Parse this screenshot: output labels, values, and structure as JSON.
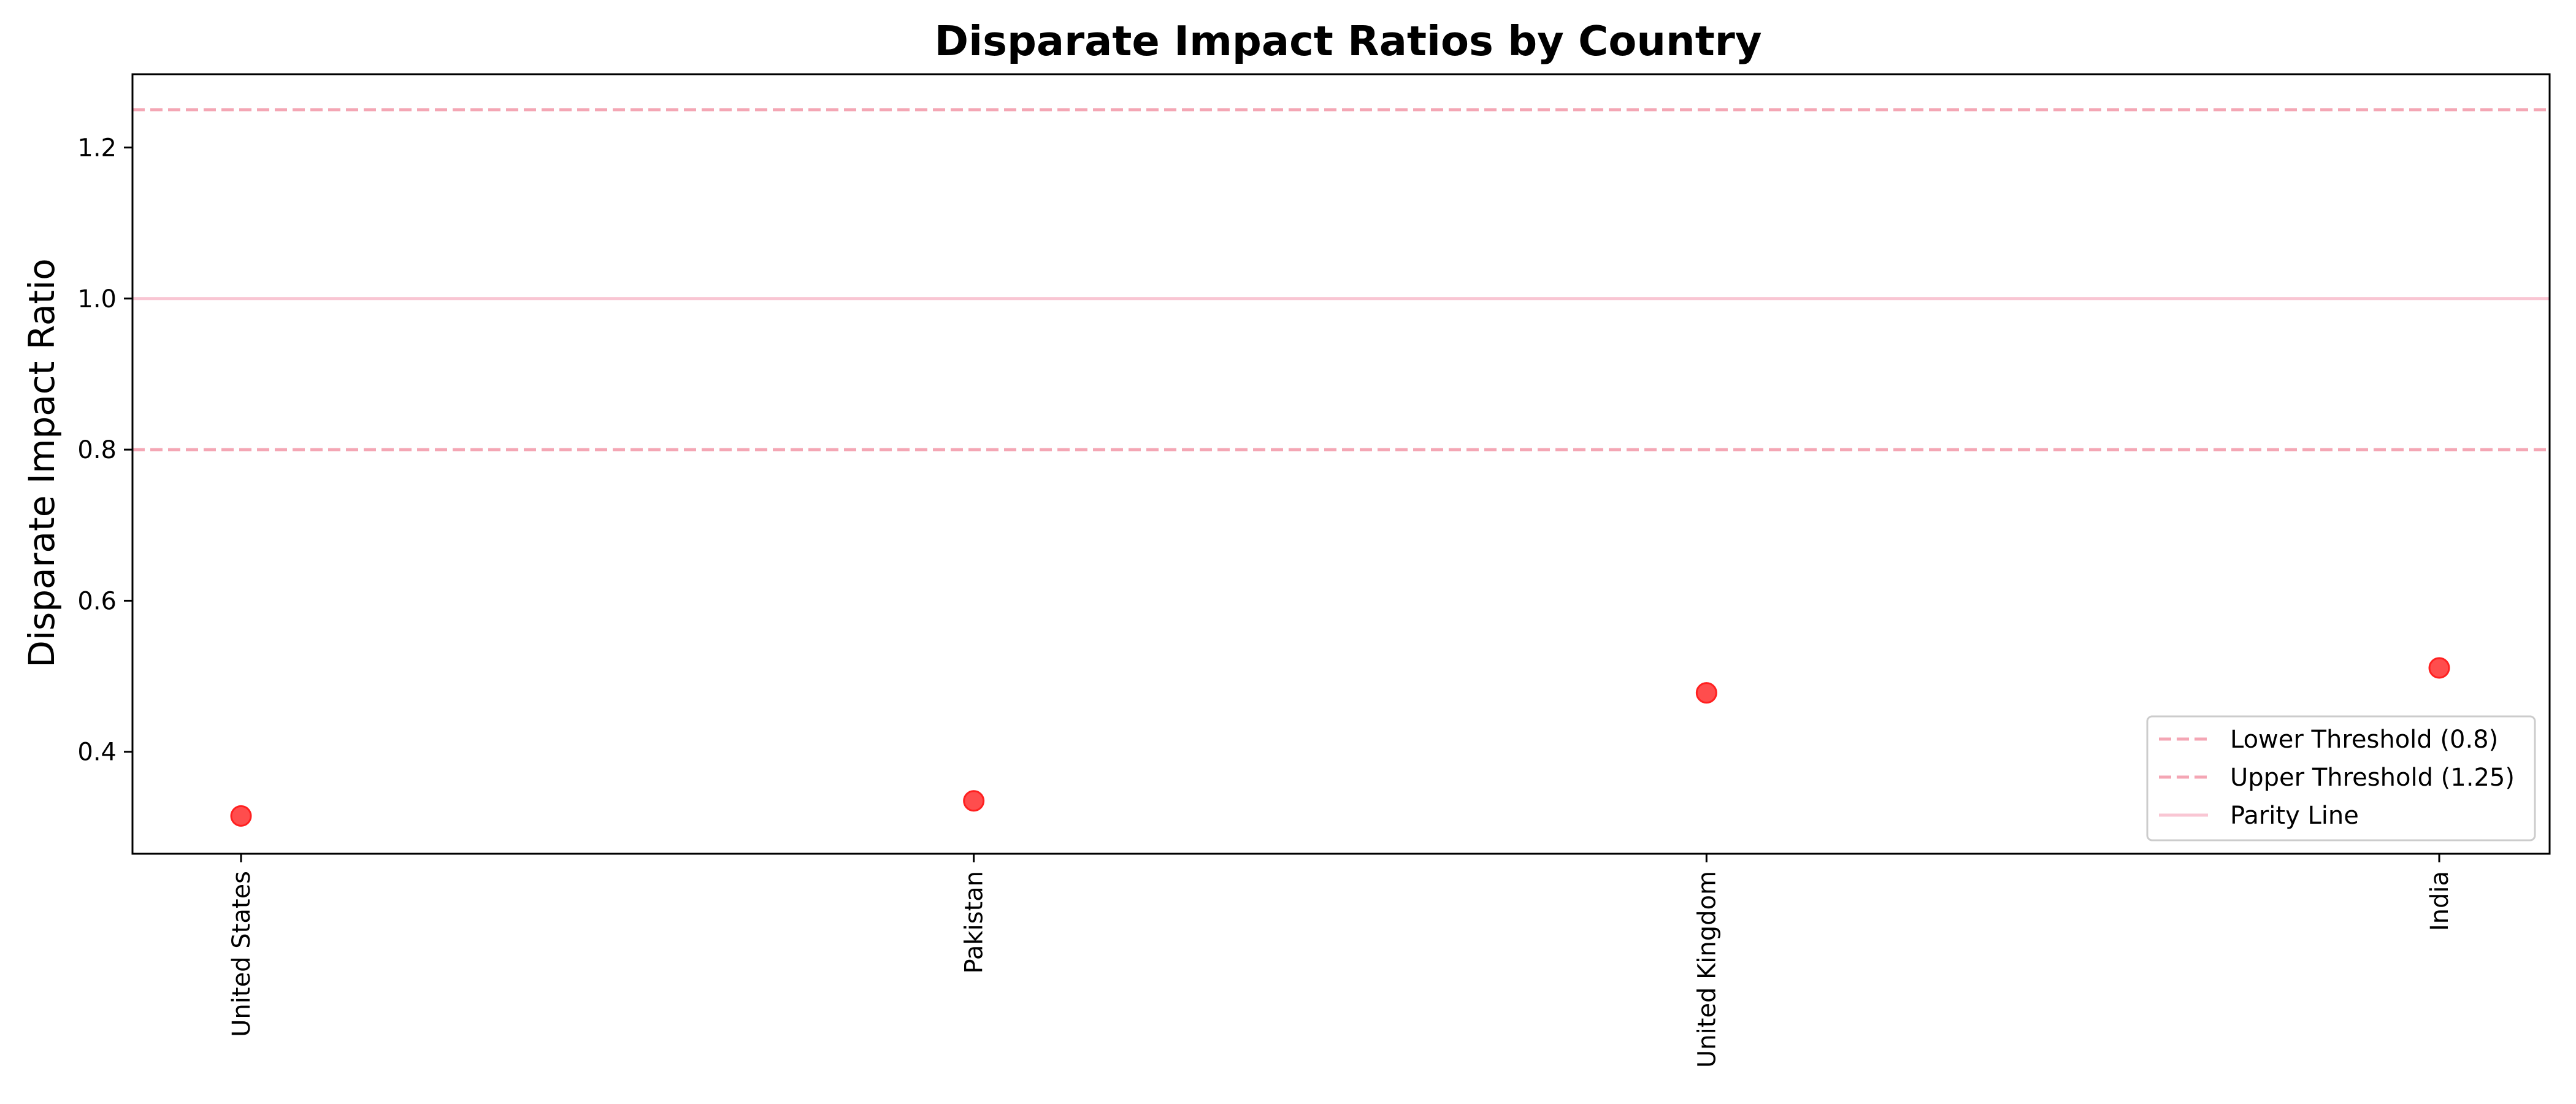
{
  "chart_data": {
    "type": "scatter",
    "title": "Disparate Impact Ratios by Country",
    "xlabel": "",
    "ylabel": "Disparate Impact Ratio",
    "categories": [
      "United States",
      "Pakistan",
      "United Kingdom",
      "India"
    ],
    "series": [
      {
        "values": [
          0.315,
          0.335,
          0.478,
          0.511
        ],
        "color": "#ff2020"
      }
    ],
    "ylim": [
      0.265,
      1.297
    ],
    "yticks": [
      "0.4",
      "0.6",
      "0.8",
      "1.0",
      "1.2"
    ],
    "reference_lines": [
      {
        "label": "Lower Threshold (0.8)",
        "y": 0.8,
        "style": "dashed",
        "color": "#f4a6b4"
      },
      {
        "label": "Upper Threshold (1.25)",
        "y": 1.25,
        "style": "dashed",
        "color": "#f4a6b4"
      },
      {
        "label": "Parity Line",
        "y": 1.0,
        "style": "solid",
        "color": "#f9c6d3"
      }
    ],
    "legend_position": "bottom-right",
    "grid": false
  }
}
